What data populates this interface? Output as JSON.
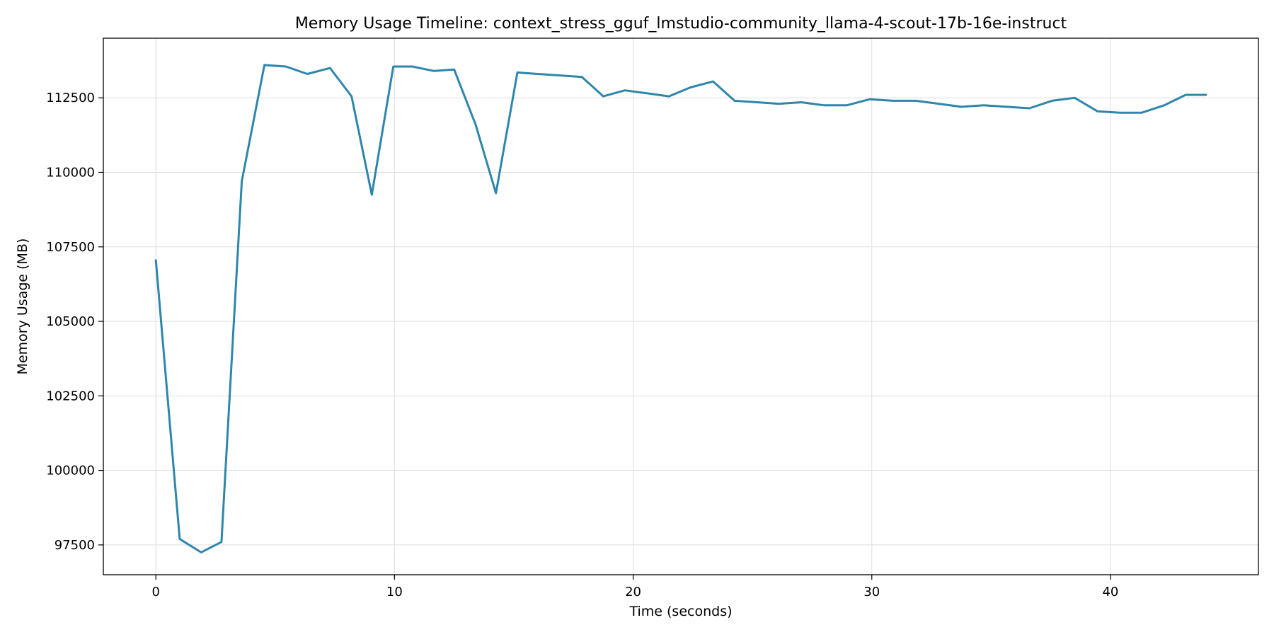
{
  "chart_data": {
    "type": "line",
    "title": "Memory Usage Timeline: context_stress_gguf_lmstudio-community_llama-4-scout-17b-16e-instruct",
    "xlabel": "Time (seconds)",
    "ylabel": "Memory Usage (MB)",
    "xlim": [
      -2.2,
      46.2
    ],
    "ylim": [
      96500,
      114500
    ],
    "xticks": [
      0,
      10,
      20,
      30,
      40
    ],
    "yticks": [
      97500,
      100000,
      102500,
      105000,
      107500,
      110000,
      112500
    ],
    "grid": true,
    "legend": "none",
    "series": [
      {
        "color": "#2e86ab",
        "x": [
          0,
          1.0,
          1.9,
          2.75,
          3.6,
          4.55,
          5.45,
          6.35,
          7.3,
          8.2,
          9.05,
          9.95,
          10.75,
          11.65,
          12.5,
          13.4,
          14.25,
          15.15,
          16.0,
          16.95,
          17.85,
          18.75,
          19.65,
          20.6,
          21.5,
          22.4,
          23.35,
          24.25,
          25.2,
          26.1,
          27.05,
          28.0,
          28.95,
          29.9,
          30.9,
          31.85,
          32.8,
          33.75,
          34.7,
          35.65,
          36.6,
          37.55,
          38.5,
          39.45,
          40.4,
          41.3,
          42.25,
          43.15,
          44.0
        ],
        "y": [
          107050,
          97700,
          97250,
          97600,
          109700,
          113600,
          113550,
          113300,
          113500,
          112550,
          109250,
          113550,
          113550,
          113400,
          113450,
          111600,
          109300,
          113350,
          113300,
          113250,
          113200,
          112550,
          112750,
          112650,
          112550,
          112850,
          113050,
          112400,
          112350,
          112300,
          112350,
          112250,
          112250,
          112450,
          112400,
          112400,
          112300,
          112200,
          112250,
          112200,
          112150,
          112400,
          112500,
          112050,
          112000,
          112000,
          112250,
          112600,
          112600
        ]
      }
    ]
  }
}
